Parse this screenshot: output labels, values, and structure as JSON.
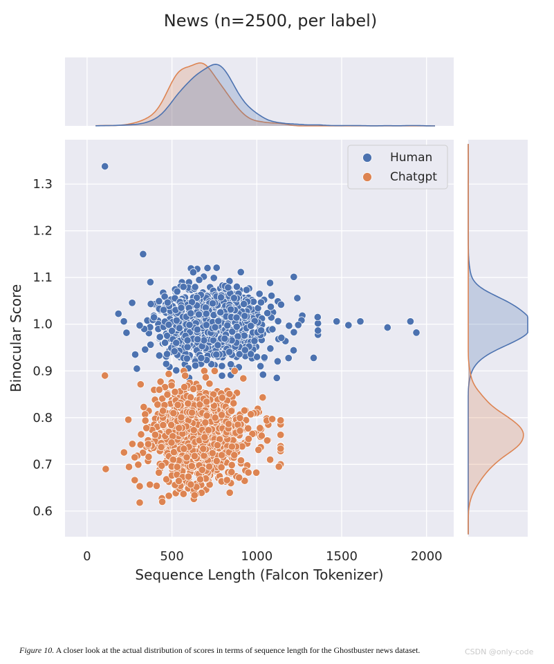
{
  "chart_data": {
    "type": "scatter",
    "title": "News (n=2500, per label)",
    "xlabel": "Sequence Length (Falcon Tokenizer)",
    "ylabel": "Binocular Score",
    "xlim": [
      -130,
      2160
    ],
    "ylim": [
      0.545,
      1.395
    ],
    "xticks": [
      "0",
      "500",
      "1000",
      "1500",
      "2000"
    ],
    "xtick_values": [
      0,
      500,
      1000,
      1500,
      2000
    ],
    "yticks": [
      "0.6",
      "0.7",
      "0.8",
      "0.9",
      "1.0",
      "1.1",
      "1.2",
      "1.3"
    ],
    "ytick_values": [
      0.6,
      0.7,
      0.8,
      0.9,
      1.0,
      1.1,
      1.2,
      1.3
    ],
    "grid": true,
    "legend_position": "top-right",
    "marginals": "kde",
    "series": [
      {
        "name": "Human",
        "color": "#4C72B0",
        "n": 2500,
        "length_mean": 720,
        "length_std": 150,
        "score_mean": 1.0,
        "score_std": 0.038,
        "notable_points": [
          {
            "x": 105,
            "y": 1.338
          },
          {
            "x": 330,
            "y": 1.15
          },
          {
            "x": 1770,
            "y": 0.993
          },
          {
            "x": 1905,
            "y": 1.006
          },
          {
            "x": 1940,
            "y": 0.982
          },
          {
            "x": 1610,
            "y": 1.006
          },
          {
            "x": 1540,
            "y": 0.998
          },
          {
            "x": 1470,
            "y": 1.006
          },
          {
            "x": 1335,
            "y": 0.928
          }
        ]
      },
      {
        "name": "Chatgpt",
        "color": "#DD8452",
        "n": 2500,
        "length_mean": 650,
        "length_std": 140,
        "score_mean": 0.76,
        "score_std": 0.05,
        "notable_points": [
          {
            "x": 310,
            "y": 0.618
          },
          {
            "x": 1130,
            "y": 0.695
          },
          {
            "x": 105,
            "y": 0.89
          },
          {
            "x": 110,
            "y": 0.69
          }
        ]
      }
    ]
  },
  "caption": {
    "label": "Figure 10.",
    "text": "A closer look at the actual distribution of scores in terms of sequence length for the Ghostbuster news dataset."
  },
  "watermark": "CSDN @only-code"
}
